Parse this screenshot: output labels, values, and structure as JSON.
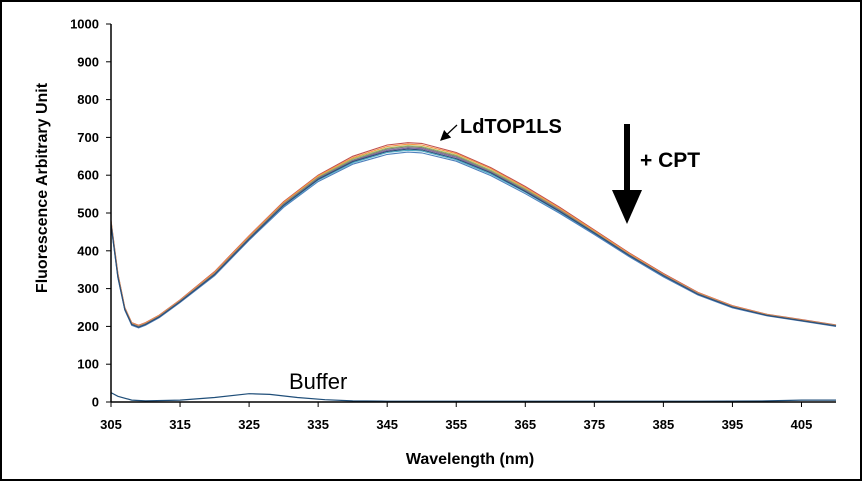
{
  "chart_data": {
    "type": "line",
    "title": "",
    "xlabel": "Wavelength (nm)",
    "ylabel": "Fluorescence Arbitrary Unit",
    "xlim": [
      305,
      410
    ],
    "ylim": [
      0,
      1000
    ],
    "x_ticks": [
      "305",
      "315",
      "325",
      "335",
      "345",
      "355",
      "365",
      "375",
      "385",
      "395",
      "405"
    ],
    "y_ticks": [
      "0",
      "100",
      "200",
      "300",
      "400",
      "500",
      "600",
      "700",
      "800",
      "900",
      "1000"
    ],
    "grid": false,
    "legend": "none",
    "x": [
      305,
      306,
      307,
      308,
      309,
      310,
      312,
      315,
      320,
      325,
      330,
      335,
      340,
      345,
      348,
      350,
      355,
      360,
      365,
      370,
      375,
      380,
      385,
      390,
      395,
      400,
      405,
      410
    ],
    "series": [
      {
        "color": "#c0504d",
        "values": [
          480,
          340,
          250,
          210,
          203,
          210,
          230,
          270,
          345,
          440,
          530,
          600,
          650,
          680,
          686,
          684,
          660,
          620,
          570,
          515,
          455,
          395,
          340,
          290,
          255,
          232,
          218,
          204
        ]
      },
      {
        "color": "#9bbb59",
        "values": [
          476,
          336,
          248,
          208,
          201,
          208,
          228,
          268,
          342,
          436,
          526,
          595,
          643,
          672,
          678,
          676,
          653,
          613,
          564,
          510,
          451,
          392,
          337,
          288,
          253,
          231,
          217,
          203
        ]
      },
      {
        "color": "#8064a2",
        "values": [
          473,
          333,
          246,
          206,
          199,
          206,
          226,
          266,
          339,
          433,
          522,
          591,
          638,
          666,
          672,
          670,
          647,
          608,
          559,
          506,
          448,
          389,
          335,
          286,
          251,
          230,
          216,
          202
        ]
      },
      {
        "color": "#4bacc6",
        "values": [
          470,
          330,
          244,
          204,
          197,
          204,
          224,
          264,
          336,
          430,
          518,
          587,
          633,
          660,
          666,
          664,
          641,
          603,
          555,
          502,
          445,
          387,
          333,
          284,
          250,
          229,
          215,
          201
        ]
      },
      {
        "color": "#f79646",
        "values": [
          478,
          338,
          249,
          209,
          202,
          209,
          229,
          269,
          343,
          438,
          528,
          598,
          646,
          676,
          682,
          680,
          657,
          617,
          567,
          512,
          453,
          393,
          338,
          289,
          254,
          231,
          217,
          203
        ]
      },
      {
        "color": "#4f81bd",
        "values": [
          468,
          328,
          243,
          203,
          196,
          203,
          223,
          263,
          334,
          428,
          515,
          583,
          629,
          655,
          661,
          659,
          637,
          599,
          551,
          499,
          443,
          385,
          331,
          283,
          249,
          228,
          214,
          200
        ]
      },
      {
        "color": "#7f7f7f",
        "values": [
          474,
          334,
          247,
          207,
          200,
          207,
          227,
          267,
          340,
          434,
          524,
          593,
          640,
          669,
          675,
          673,
          650,
          610,
          561,
          508,
          449,
          390,
          336,
          287,
          252,
          230,
          216,
          202
        ]
      },
      {
        "color": "#2c4d75",
        "values": [
          471,
          331,
          245,
          205,
          198,
          205,
          225,
          265,
          337,
          431,
          520,
          589,
          636,
          663,
          669,
          667,
          644,
          606,
          557,
          504,
          447,
          388,
          334,
          285,
          251,
          229,
          215,
          201
        ]
      }
    ],
    "buffer_series": {
      "color": "#1f4e79",
      "x": [
        305,
        306,
        308,
        310,
        315,
        320,
        325,
        328,
        332,
        336,
        340,
        345,
        350,
        360,
        370,
        380,
        390,
        400,
        405,
        410
      ],
      "values": [
        25,
        15,
        5,
        3,
        5,
        12,
        22,
        20,
        12,
        6,
        3,
        2,
        2,
        2,
        2,
        2,
        2,
        3,
        5,
        5
      ]
    },
    "annotations": {
      "sample_label": "LdTOP1LS",
      "treatment_label": "+ CPT",
      "buffer_label": "Buffer"
    }
  }
}
